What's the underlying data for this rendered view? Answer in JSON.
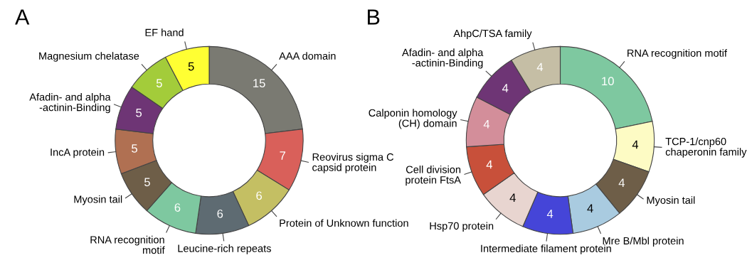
{
  "chart_data": [
    {
      "type": "donut",
      "title": "A",
      "data_labels": true,
      "categories": [
        "AAA domain",
        "Reovirus sigma C\ncapsid protein",
        "Protein of Unknown function",
        "Leucine-rich repeats",
        "RNA recognition\nmotif",
        "Myosin tail",
        "IncA protein",
        "Afadin- and alpha\n-actinin-Binding",
        "Magnesium chelatase",
        "EF hand"
      ],
      "values": [
        15,
        7,
        6,
        6,
        6,
        5,
        5,
        5,
        5,
        5
      ],
      "colors": [
        "#7a7a72",
        "#d9605a",
        "#c4bf63",
        "#5e6b72",
        "#7ec8a0",
        "#6e5e48",
        "#b07052",
        "#6e3575",
        "#a3cc3a",
        "#ffff33"
      ]
    },
    {
      "type": "donut",
      "title": "B",
      "data_labels": true,
      "categories": [
        "RNA recognition motif",
        "TCP-1/cnp60\nchaperonin family",
        "Myosin tail",
        "Mre B/Mbl protein",
        "Intermediate filament protein",
        "Hsp70 protein",
        "Cell division\nprotein FtsA",
        "Calponin homology\n(CH) domain",
        "Afadin- and alpha\n-actinin-Binding",
        "AhpC/TSA family"
      ],
      "values": [
        10,
        4,
        4,
        4,
        4,
        4,
        4,
        4,
        4,
        4
      ],
      "colors": [
        "#7ec8a0",
        "#fdfbc4",
        "#6e5e48",
        "#a9cbe0",
        "#4545d8",
        "#e8d5d0",
        "#c8503a",
        "#d38e9a",
        "#6e3575",
        "#c5bea5"
      ]
    }
  ]
}
